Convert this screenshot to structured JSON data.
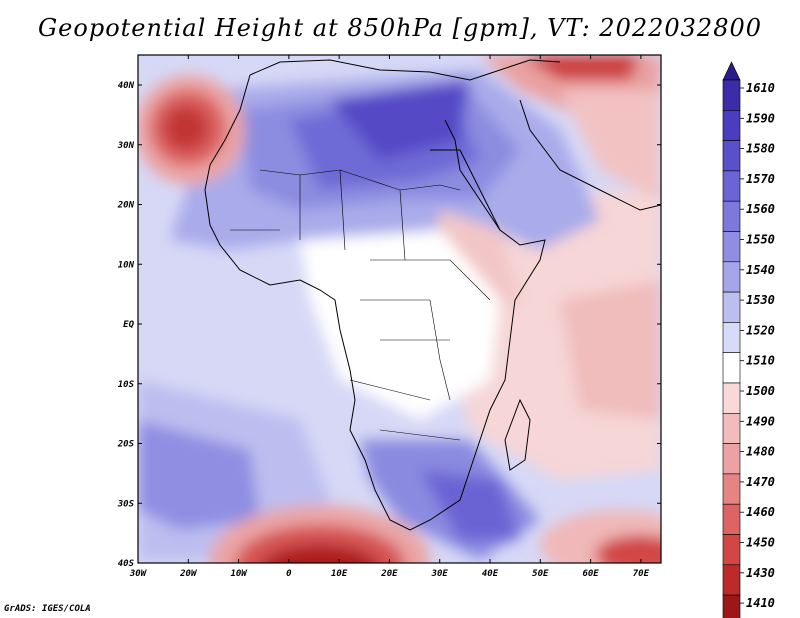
{
  "title": "Geopotential Height at 850hPa [gpm], VT: 2022032800",
  "credit": "GrADS: IGES/COLA",
  "lon_labels": [
    "30W",
    "20W",
    "10W",
    "0",
    "10E",
    "20E",
    "30E",
    "40E",
    "50E",
    "60E",
    "70E"
  ],
  "lat_labels": [
    "40N",
    "30N",
    "20N",
    "10N",
    "EQ",
    "10S",
    "20S",
    "30S",
    "40S"
  ],
  "colorbar": {
    "labels": [
      "1610",
      "1590",
      "1580",
      "1570",
      "1560",
      "1550",
      "1540",
      "1530",
      "1520",
      "1510",
      "1500",
      "1490",
      "1480",
      "1470",
      "1460",
      "1450",
      "1430",
      "1410"
    ],
    "colors": [
      "#3c2ca8",
      "#4b3cc0",
      "#5a50cc",
      "#6a64d4",
      "#7c78dc",
      "#8f8ee2",
      "#a5a6ea",
      "#bcbef0",
      "#d8daf8",
      "#ffffff",
      "#f8d8d8",
      "#f2bcbc",
      "#eca2a2",
      "#e68484",
      "#de6464",
      "#d24646",
      "#bc2a2a",
      "#9c1818"
    ],
    "arrow_top_color": "#2a1c8c",
    "arrow_bottom_color": "#8c1010"
  }
}
